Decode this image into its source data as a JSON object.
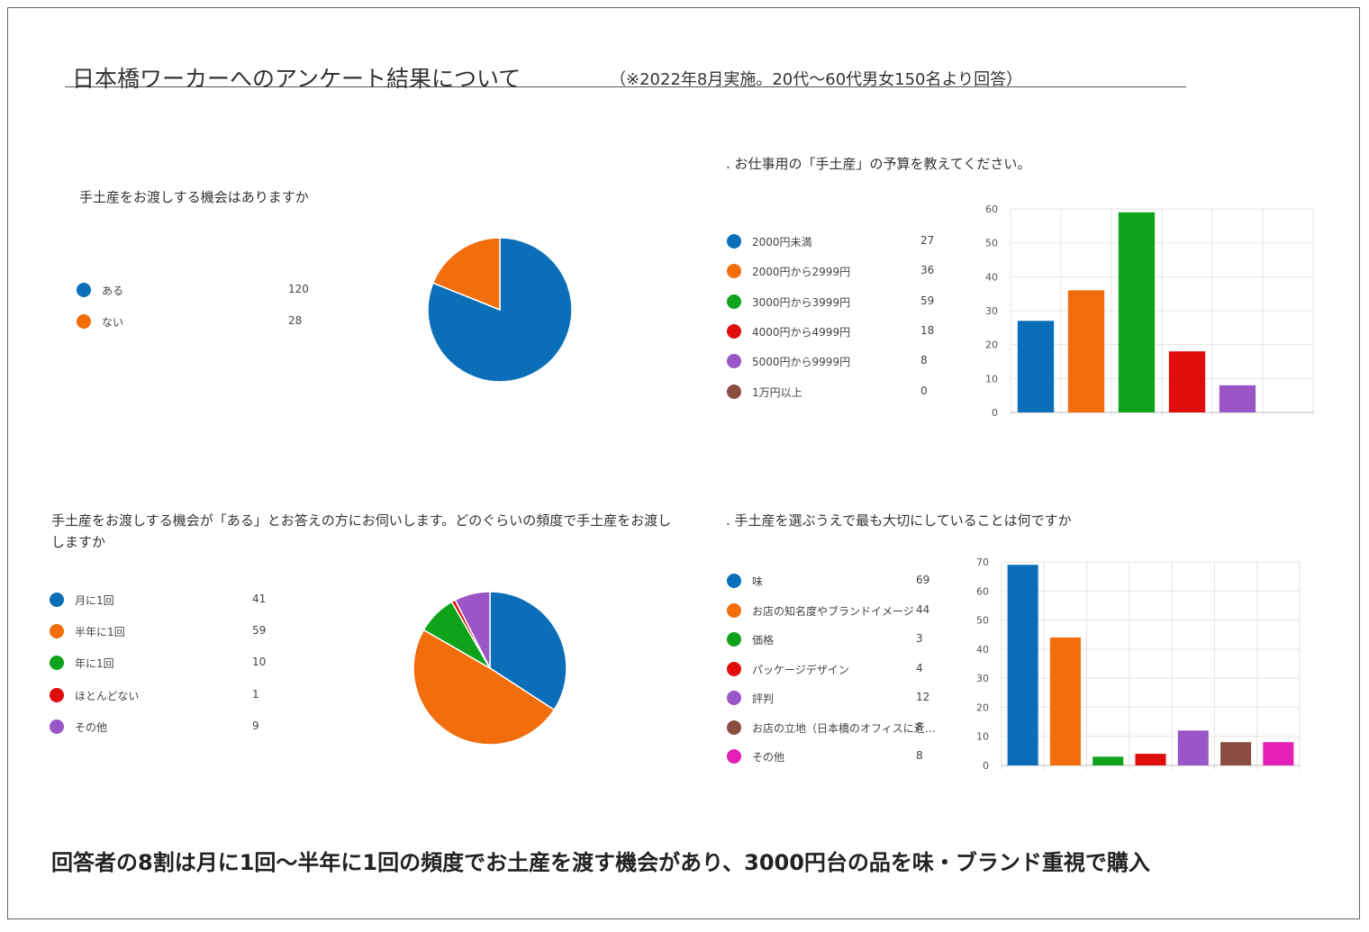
{
  "header": {
    "title": "日本橋ワーカーへのアンケート結果について",
    "subtitle": "（※2022年8月実施。20代〜60代男女150名より回答）"
  },
  "footer": {
    "text": "回答者の8割は月に1回〜半年に1回の頻度でお土産を渡す機会があり、3000円台の品を味・ブランド重視で購入"
  },
  "chart_data": [
    {
      "type": "pie",
      "title": "手土産をお渡しする機会はありますか",
      "categories": [
        "ある",
        "ない"
      ],
      "values": [
        120,
        28
      ],
      "colors": [
        "#0a6fb8",
        "#f26d0c"
      ],
      "legend": "left"
    },
    {
      "type": "bar",
      "title": ". お仕事用の「手土産」の予算を教えてください。",
      "categories": [
        "2000円未満",
        "2000円から2999円",
        "3000円から3999円",
        "4000円から4999円",
        "5000円から9999円",
        "1万円以上"
      ],
      "values": [
        27,
        36,
        59,
        18,
        8,
        0
      ],
      "colors": [
        "#0a6fb8",
        "#f26d0c",
        "#0fa31b",
        "#e00d0d",
        "#9a55c6",
        "#8b4c42"
      ],
      "ylim": [
        0,
        60
      ],
      "yticks": [
        0,
        10,
        20,
        30,
        40,
        50,
        60
      ],
      "grid": true,
      "legend": "left"
    },
    {
      "type": "pie",
      "title": "手土産をお渡しする機会が「ある」とお答えの方にお伺いします。どのぐらいの頻度で手土産をお渡ししますか",
      "categories": [
        "月に1回",
        "半年に1回",
        "年に1回",
        "ほとんどない",
        "その他"
      ],
      "values": [
        41,
        59,
        10,
        1,
        9
      ],
      "colors": [
        "#0a6fb8",
        "#f26d0c",
        "#0fa31b",
        "#e00d0d",
        "#9a55c6"
      ],
      "legend": "left"
    },
    {
      "type": "bar",
      "title": ". 手土産を選ぶうえで最も大切にしていることは何ですか",
      "categories": [
        "味",
        "お店の知名度やブランドイメージ",
        "価格",
        "パッケージデザイン",
        "評判",
        "お店の立地（日本橋のオフィスに近…",
        "その他"
      ],
      "values": [
        69,
        44,
        3,
        4,
        12,
        8,
        8
      ],
      "colors": [
        "#0a6fb8",
        "#f26d0c",
        "#0fa31b",
        "#e00d0d",
        "#9a55c6",
        "#8b4c42",
        "#e31fb6"
      ],
      "ylim": [
        0,
        70
      ],
      "yticks": [
        0,
        10,
        20,
        30,
        40,
        50,
        60,
        70
      ],
      "grid": true,
      "legend": "left"
    }
  ]
}
